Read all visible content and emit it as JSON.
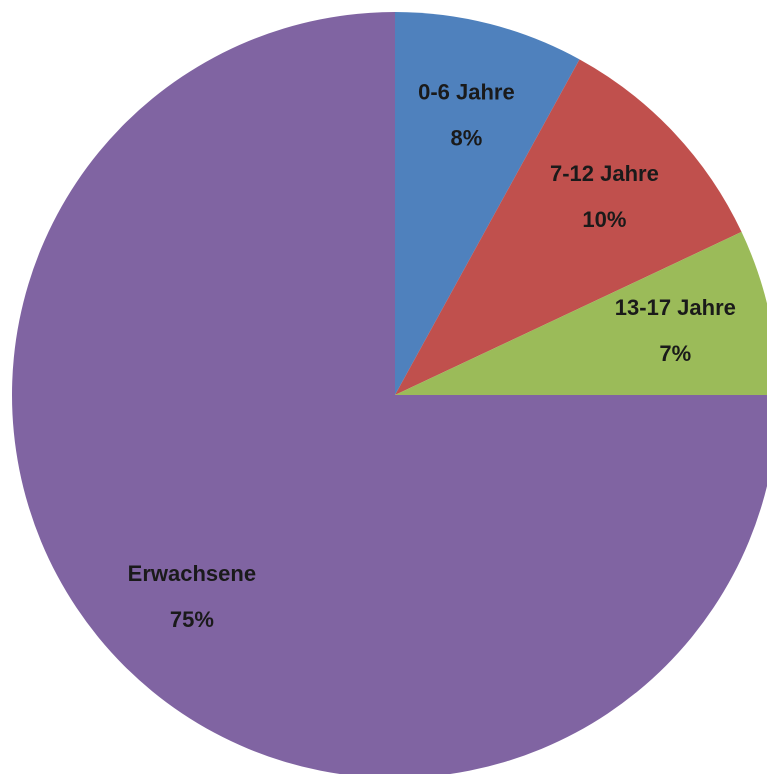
{
  "chart_data": {
    "type": "pie",
    "categories": [
      "0-6 Jahre",
      "7-12 Jahre",
      "13-17 Jahre",
      "Erwachsene"
    ],
    "values": [
      8,
      10,
      7,
      75
    ],
    "value_labels": [
      "8%",
      "10%",
      "7%",
      "75%"
    ],
    "colors": [
      "#4f81bd",
      "#c0504d",
      "#9bbb59",
      "#8064a2"
    ]
  }
}
